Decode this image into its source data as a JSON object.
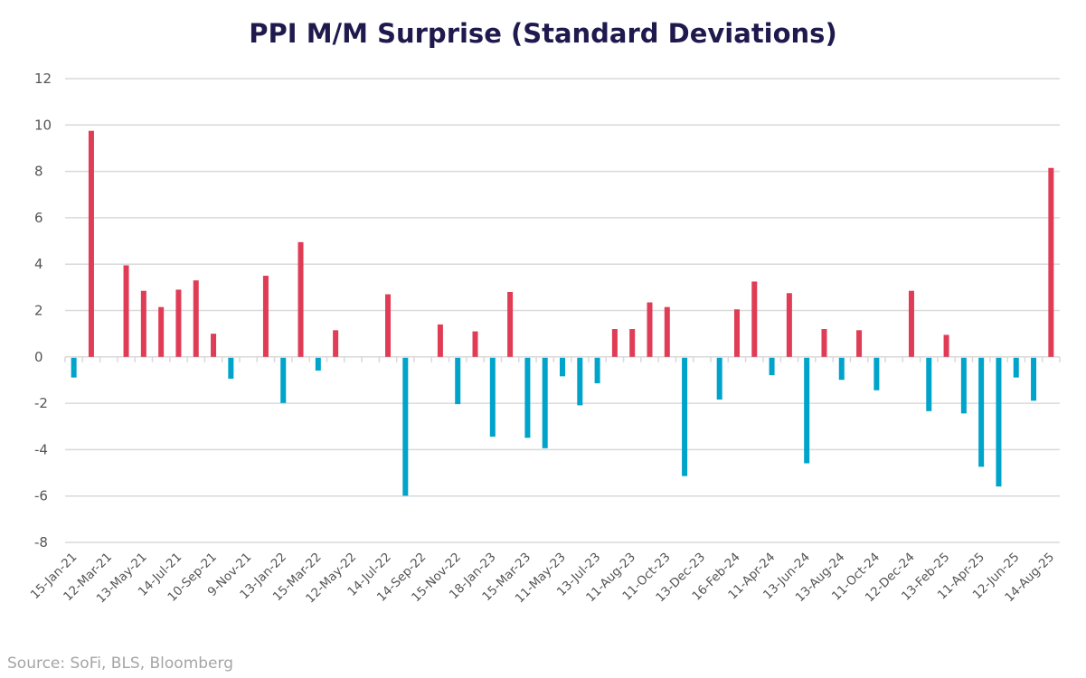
{
  "chart_data": {
    "type": "bar",
    "title": "PPI M/M Surprise (Standard Deviations)",
    "xlabel": "",
    "ylabel": "",
    "ylim": [
      -8,
      12
    ],
    "yticks": [
      -8,
      -6,
      -4,
      -2,
      0,
      2,
      4,
      6,
      8,
      10,
      12
    ],
    "grid": true,
    "tick_labels": [
      "15-Jan-21",
      "12-Mar-21",
      "13-May-21",
      "14-Jul-21",
      "10-Sep-21",
      "9-Nov-21",
      "13-Jan-22",
      "15-Mar-22",
      "12-May-22",
      "14-Jul-22",
      "14-Sep-22",
      "15-Nov-22",
      "18-Jan-23",
      "15-Mar-23",
      "11-May-23",
      "13-Jul-23",
      "11-Aug-23",
      "11-Oct-23",
      "13-Dec-23",
      "16-Feb-24",
      "11-Apr-24",
      "13-Jun-24",
      "13-Aug-24",
      "11-Oct-24",
      "12-Dec-24",
      "13-Feb-25",
      "11-Apr-25",
      "12-Jun-25",
      "14-Aug-25"
    ],
    "tick_label_every": 2,
    "values": [
      -0.85,
      9.75,
      0,
      3.95,
      2.85,
      2.15,
      2.9,
      3.3,
      1.0,
      -0.9,
      0,
      3.5,
      -1.95,
      4.95,
      -0.55,
      1.15,
      0,
      0,
      2.7,
      -5.95,
      0,
      1.4,
      -2.0,
      1.1,
      -3.4,
      2.8,
      -3.45,
      -3.9,
      -0.8,
      -2.05,
      -1.1,
      1.2,
      1.2,
      2.35,
      2.15,
      -5.1,
      0,
      -1.8,
      2.05,
      3.25,
      -0.75,
      2.75,
      -4.55,
      1.2,
      -0.95,
      1.15,
      -1.4,
      0,
      2.85,
      -2.3,
      0.95,
      -2.4,
      -4.7,
      -5.55,
      -0.85,
      -1.85,
      8.15
    ],
    "colors": {
      "positive": "#e03c55",
      "negative": "#00a3c9",
      "grid": "#d9d9d9"
    }
  },
  "source": "Source: SoFi, BLS, Bloomberg"
}
